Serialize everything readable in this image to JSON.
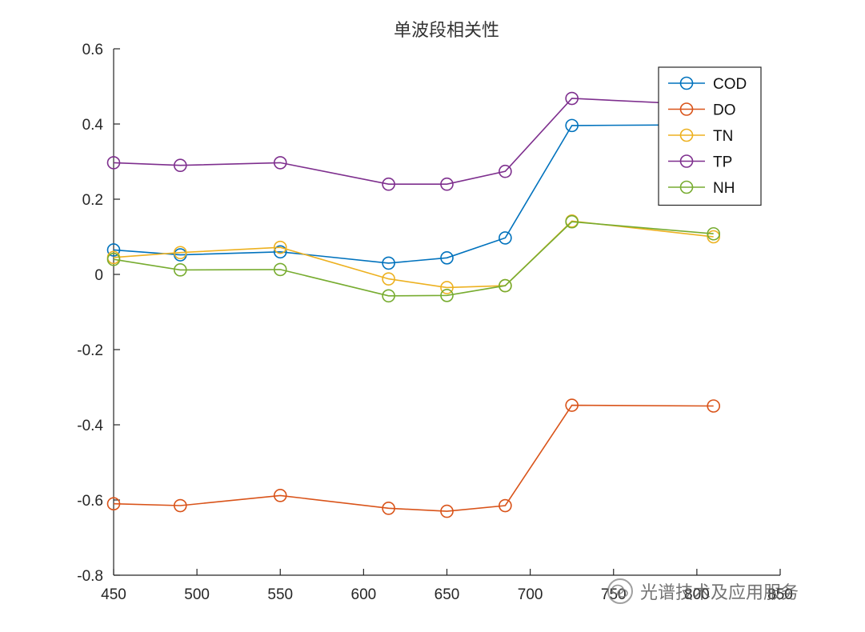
{
  "chart_data": {
    "type": "line",
    "title": "单波段相关性",
    "xlabel": "",
    "ylabel": "",
    "xlim": [
      450,
      850
    ],
    "ylim": [
      -0.8,
      0.6
    ],
    "xticks": [
      450,
      500,
      550,
      600,
      650,
      700,
      750,
      800,
      850
    ],
    "xtick_labels": [
      "450",
      "500",
      "550",
      "600",
      "650",
      "700",
      "750",
      "800",
      "850"
    ],
    "yticks": [
      -0.8,
      -0.6,
      -0.4,
      -0.2,
      0,
      0.2,
      0.4,
      0.6
    ],
    "ytick_labels": [
      "-0.8",
      "-0.6",
      "-0.4",
      "-0.2",
      "0",
      "0.2",
      "0.4",
      "0.6"
    ],
    "grid": false,
    "legend_position": "top-right",
    "x": [
      450,
      490,
      550,
      615,
      650,
      685,
      725,
      810
    ],
    "series": [
      {
        "name": "COD",
        "color": "#0072BD",
        "values": [
          0.065,
          0.052,
          0.06,
          0.03,
          0.044,
          0.097,
          0.396,
          0.398
        ]
      },
      {
        "name": "DO",
        "color": "#D95319",
        "values": [
          -0.61,
          -0.615,
          -0.588,
          -0.622,
          -0.63,
          -0.615,
          -0.348,
          -0.35
        ]
      },
      {
        "name": "TN",
        "color": "#EDB120",
        "values": [
          0.045,
          0.058,
          0.072,
          -0.012,
          -0.035,
          -0.03,
          0.142,
          0.1
        ]
      },
      {
        "name": "TP",
        "color": "#7E2F8E",
        "values": [
          0.297,
          0.29,
          0.297,
          0.24,
          0.24,
          0.274,
          0.468,
          0.45
        ]
      },
      {
        "name": "NH",
        "color": "#77AC30",
        "values": [
          0.04,
          0.012,
          0.013,
          -0.057,
          -0.056,
          -0.03,
          0.14,
          0.108
        ]
      }
    ]
  },
  "watermark": {
    "text": "光谱技术及应用服务",
    "icon": "wechat-icon"
  }
}
